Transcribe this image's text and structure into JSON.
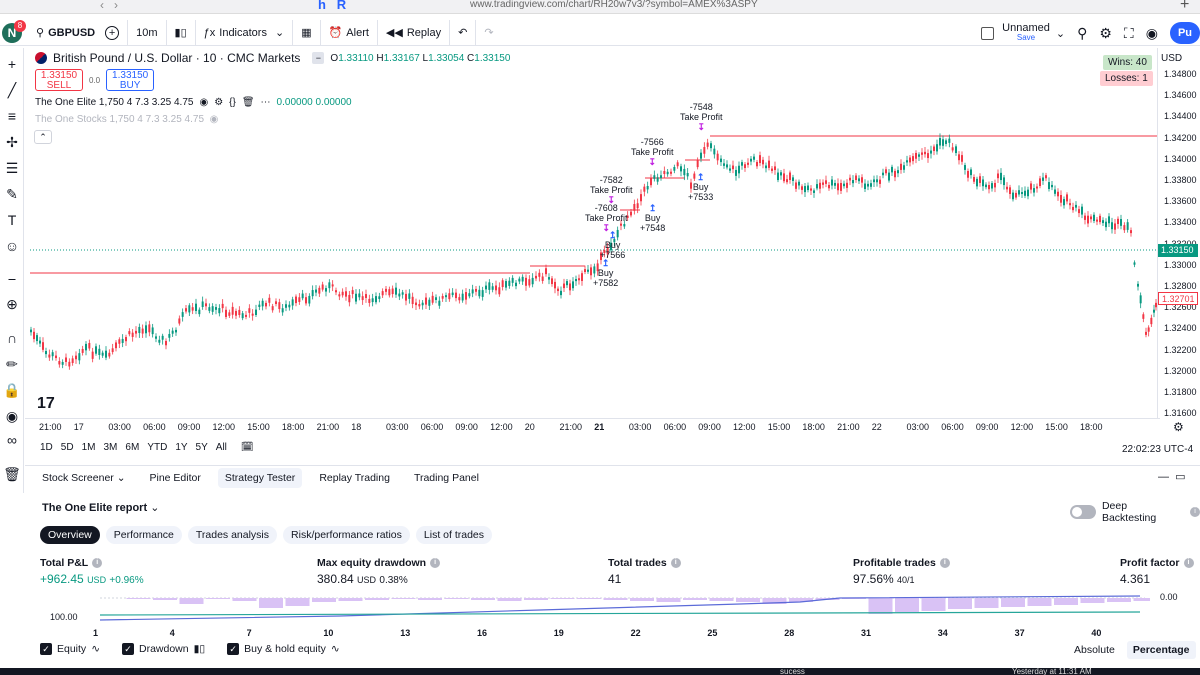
{
  "browser": {
    "url": "www.tradingview.com/chart/RH20w7v3/?symbol=AMEX%3ASPY"
  },
  "toolbar": {
    "avatar_letter": "N",
    "avatar_badge": "8",
    "symbol": "GBPUSD",
    "interval": "10m",
    "indicators_label": "Indicators",
    "alert_label": "Alert",
    "replay_label": "Replay",
    "layout_name": "Unnamed",
    "save_label": "Save",
    "publish_label": "Pu"
  },
  "chart_header": {
    "title": "British Pound / U.S. Dollar · 10 · CMC Markets",
    "open_label": "O",
    "open": "1.33110",
    "high_label": "H",
    "high": "1.33167",
    "low_label": "L",
    "low": "1.33054",
    "close_label": "C",
    "close": "1.33150",
    "sell_price": "1.33150",
    "sell_label": "SELL",
    "spread": "0.0",
    "buy_price": "1.33150",
    "buy_label": "BUY",
    "indicator1": "The One Elite 1,750 4 7.3 3.25 4.75",
    "indicator1_values": "0.00000  0.00000",
    "indicator2": "The One Stocks 1,750 4 7.3 3.25 4.75"
  },
  "stats": {
    "wins": "Wins: 40",
    "losses": "Losses: 1"
  },
  "price_axis": {
    "currency": "USD",
    "labels": [
      "1.34800",
      "1.34600",
      "1.34400",
      "1.34200",
      "1.34000",
      "1.33800",
      "1.33600",
      "1.33400",
      "1.33200",
      "1.33000",
      "1.32800",
      "1.32600",
      "1.32400",
      "1.32200",
      "1.32000",
      "1.31800",
      "1.31600"
    ],
    "current_price": "1.33150",
    "cursor_price": "1.32701"
  },
  "time_axis": {
    "labels": [
      "21:00",
      "17",
      "03:00",
      "06:00",
      "09:00",
      "12:00",
      "15:00",
      "18:00",
      "21:00",
      "18",
      "03:00",
      "06:00",
      "09:00",
      "12:00",
      "20",
      "21:00",
      "21",
      "03:00",
      "06:00",
      "09:00",
      "12:00",
      "15:00",
      "18:00",
      "21:00",
      "22",
      "03:00",
      "06:00",
      "09:00",
      "12:00",
      "15:00",
      "18:00"
    ]
  },
  "trade_annotations": [
    {
      "text1": "-7548",
      "text2": "Take Profit"
    },
    {
      "text1": "-7566",
      "text2": "Take Profit"
    },
    {
      "text1": "-7582",
      "text2": "Take Profit"
    },
    {
      "text1": "-7608",
      "text2": "Take Profit"
    },
    {
      "text1": "Buy",
      "text2": "+7533"
    },
    {
      "text1": "Buy",
      "text2": "+7548"
    },
    {
      "text1": "Buy",
      "text2": "+7566"
    },
    {
      "text1": "Buy",
      "text2": "+7582"
    }
  ],
  "range_bar": {
    "ranges": [
      "1D",
      "5D",
      "1M",
      "3M",
      "6M",
      "YTD",
      "1Y",
      "5Y",
      "All"
    ],
    "clock": "22:02:23 UTC-4"
  },
  "bottom_tabs": [
    "Stock Screener",
    "Pine Editor",
    "Strategy Tester",
    "Replay Trading",
    "Trading Panel"
  ],
  "report": {
    "title": "The One Elite report",
    "deep_backtesting": "Deep Backtesting",
    "tabs": [
      "Overview",
      "Performance",
      "Trades analysis",
      "Risk/performance ratios",
      "List of trades"
    ]
  },
  "metrics": {
    "net_label": "Total P&L",
    "net_value": "+962.45",
    "net_unit": "USD",
    "net_pct": "+0.96%",
    "dd_label": "Max equity drawdown",
    "dd_value": "380.84",
    "dd_unit": "USD",
    "dd_pct": "0.38%",
    "trades_label": "Total trades",
    "trades_value": "41",
    "profitable_label": "Profitable trades",
    "profitable_value": "97.56%",
    "profitable_sub": "40/1",
    "pf_label": "Profit factor",
    "pf_value": "4.361"
  },
  "equity_chart": {
    "left_label": "100.00",
    "right_label": "0.00",
    "ticks": [
      "1",
      "4",
      "7",
      "10",
      "13",
      "16",
      "19",
      "22",
      "25",
      "28",
      "31",
      "34",
      "37",
      "40"
    ]
  },
  "legend": {
    "equity": "Equity",
    "drawdown": "Drawdown",
    "buy_hold": "Buy & hold equity"
  },
  "modes": {
    "absolute": "Absolute",
    "percentage": "Percentage"
  },
  "bottom_strip": {
    "left": "sucess",
    "right": "Yesterday at 11:31 AM"
  },
  "colors": {
    "up": "#089981",
    "down": "#f23645",
    "accent": "#2962ff",
    "tp_marker": "#c020e0"
  }
}
